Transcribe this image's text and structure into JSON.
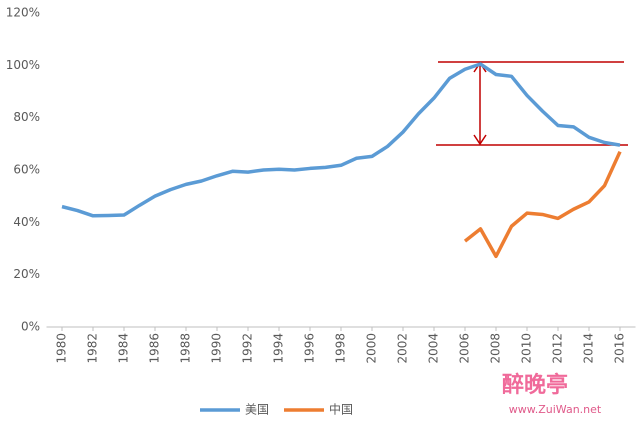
{
  "chart_data": {
    "type": "line",
    "x": [
      1980,
      1981,
      1982,
      1983,
      1984,
      1985,
      1986,
      1987,
      1988,
      1989,
      1990,
      1991,
      1992,
      1993,
      1994,
      1995,
      1996,
      1997,
      1998,
      1999,
      2000,
      2001,
      2002,
      2003,
      2004,
      2005,
      2006,
      2007,
      2008,
      2009,
      2010,
      2011,
      2012,
      2013,
      2014,
      2015,
      2016
    ],
    "series": [
      {
        "name": "美国",
        "color": "#5b9bd5",
        "values": [
          46,
          44.5,
          42.5,
          42.6,
          42.8,
          46.5,
          50,
          52.5,
          54.5,
          55.8,
          57.8,
          59.5,
          59.2,
          60,
          60.3,
          60,
          60.6,
          61,
          61.8,
          64.5,
          65.2,
          69,
          74.5,
          81.5,
          87.5,
          95,
          98.5,
          100.5,
          96.5,
          95.8,
          88.5,
          82.5,
          77,
          76.5,
          72.5,
          70.5,
          69.5
        ]
      },
      {
        "name": "中国",
        "color": "#ed7d31",
        "values": [
          null,
          null,
          null,
          null,
          null,
          null,
          null,
          null,
          null,
          null,
          null,
          null,
          null,
          null,
          null,
          null,
          null,
          null,
          null,
          null,
          null,
          null,
          null,
          null,
          null,
          null,
          32.8,
          37.5,
          27,
          38.5,
          43.5,
          43,
          41.5,
          45,
          47.8,
          54,
          67
        ]
      }
    ],
    "xlim": [
      1979,
      2017
    ],
    "xticks": [
      1980,
      1982,
      1984,
      1986,
      1988,
      1990,
      1992,
      1994,
      1996,
      1998,
      2000,
      2002,
      2004,
      2006,
      2008,
      2010,
      2012,
      2014,
      2016
    ],
    "ylim": [
      0,
      120
    ],
    "yticks": [
      {
        "value": 0,
        "label": "0%"
      },
      {
        "value": 20,
        "label": "20%"
      },
      {
        "value": 40,
        "label": "40%"
      },
      {
        "value": 60,
        "label": "60%"
      },
      {
        "value": 80,
        "label": "80%"
      },
      {
        "value": 100,
        "label": "100%"
      },
      {
        "value": 120,
        "label": "120%"
      }
    ],
    "grid": false,
    "legend": "bottom",
    "watermark": [
      "醉晚亭",
      "www.ZuiWan.net"
    ]
  }
}
